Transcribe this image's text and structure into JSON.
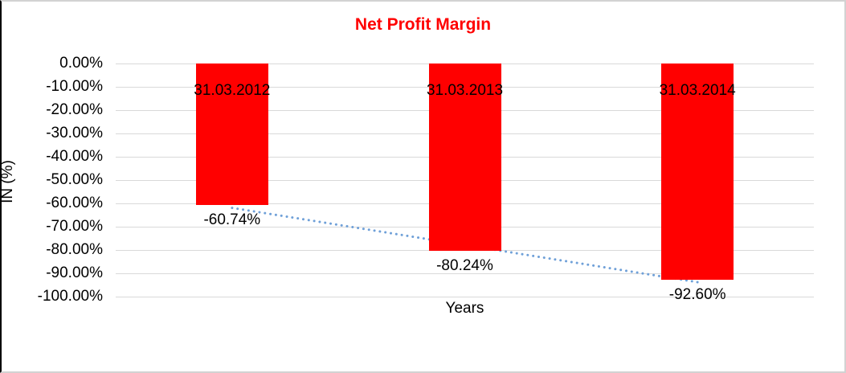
{
  "chart_data": {
    "type": "bar",
    "title": "Net Profit Margin",
    "categories": [
      "31.03.2012",
      "31.03.2013",
      "31.03.2014"
    ],
    "values": [
      -60.74,
      -80.24,
      -92.6
    ],
    "value_labels": [
      "-60.74%",
      "-80.24%",
      "-92.60%"
    ],
    "xlabel": "Years",
    "ylabel": "IN (%)",
    "ylim": [
      -100,
      0
    ],
    "y_ticks": [
      "0.00%",
      "-10.00%",
      "-20.00%",
      "-30.00%",
      "-40.00%",
      "-50.00%",
      "-60.00%",
      "-70.00%",
      "-80.00%",
      "-90.00%",
      "-100.00%"
    ],
    "grid": true,
    "legend": "none",
    "trendline": {
      "type": "linear",
      "style": "dotted"
    },
    "colors": {
      "bar": "#FF0000",
      "title": "#FF0000",
      "gridline": "#D9D9D9",
      "trendline": "#6FA0D8",
      "text": "#000000"
    }
  }
}
